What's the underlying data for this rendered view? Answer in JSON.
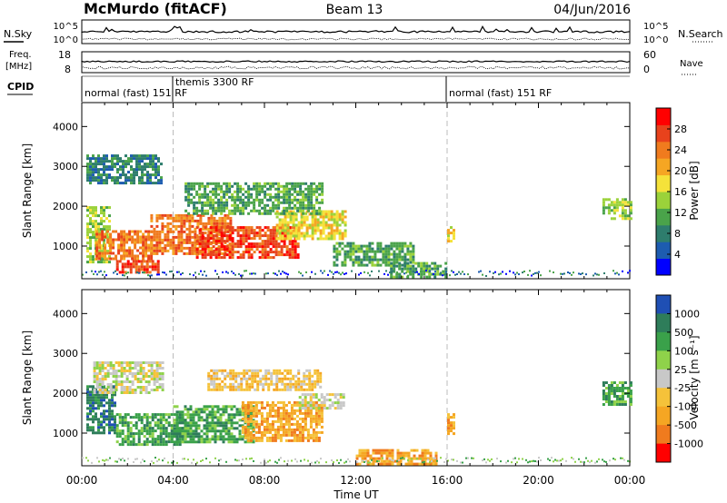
{
  "header": {
    "station": "McMurdo (fitACF)",
    "beam": "Beam 13",
    "date": "04/Jun/2016"
  },
  "noise_panel": {
    "left_label": "N.Sky",
    "right_label": "N.Search",
    "left_ticks": [
      "10^5",
      "10^0"
    ],
    "right_ticks": [
      "10^5",
      "10^0"
    ]
  },
  "freq_panel": {
    "left_label": "Freq.",
    "left_unit": "[MHz]",
    "right_label": "Nave",
    "left_ticks": [
      "18",
      "8"
    ],
    "right_ticks": [
      "60",
      "0"
    ]
  },
  "cpid_panel": {
    "label": "CPID",
    "segments": [
      {
        "name": "normal (fast) 151 RF",
        "start_hour": 0,
        "end_hour": 16
      },
      {
        "name": "themis 3300 RF",
        "start_hour": 3.9,
        "end_hour": 4.1
      },
      {
        "name": "normal (fast) 151 RF",
        "start_hour": 16,
        "end_hour": 24
      }
    ]
  },
  "chart_data": [
    {
      "type": "heatmap",
      "name": "power",
      "ylabel": "Slant Range [km]",
      "ylim": [
        180,
        4600
      ],
      "yticks": [
        "1000",
        "2000",
        "3000",
        "4000"
      ],
      "xlim": [
        0,
        24
      ],
      "colorbar": {
        "label": "Power [dB]",
        "ticks": [
          "4",
          "8",
          "12",
          "16",
          "20",
          "24",
          "28"
        ],
        "range": [
          0,
          32
        ],
        "colors": [
          "#0000ff",
          "#1d5cb0",
          "#2e7d6d",
          "#4aa34a",
          "#9bd23a",
          "#f5e23a",
          "#f5a623",
          "#f07b1e",
          "#e8421c",
          "#ff0000"
        ]
      },
      "regions": [
        {
          "x": [
            0.2,
            1.2
          ],
          "y": [
            600,
            2000
          ],
          "level": 14
        },
        {
          "x": [
            0.6,
            3.0
          ],
          "y": [
            700,
            1400
          ],
          "level": 24
        },
        {
          "x": [
            1.5,
            3.4
          ],
          "y": [
            350,
            650
          ],
          "level": 28
        },
        {
          "x": [
            3.0,
            6.5
          ],
          "y": [
            800,
            1800
          ],
          "level": 26
        },
        {
          "x": [
            5.0,
            9.5
          ],
          "y": [
            700,
            1500
          ],
          "level": 30
        },
        {
          "x": [
            8.5,
            11.5
          ],
          "y": [
            1200,
            1900
          ],
          "level": 18
        },
        {
          "x": [
            4.5,
            10.5
          ],
          "y": [
            1800,
            2600
          ],
          "level": 12
        },
        {
          "x": [
            0.2,
            3.5
          ],
          "y": [
            2600,
            3300
          ],
          "level": 8
        },
        {
          "x": [
            11.0,
            14.5
          ],
          "y": [
            500,
            1100
          ],
          "level": 11
        },
        {
          "x": [
            13.5,
            16.0
          ],
          "y": [
            200,
            600
          ],
          "level": 10
        },
        {
          "x": [
            16.0,
            16.3
          ],
          "y": [
            1100,
            1500
          ],
          "level": 16
        },
        {
          "x": [
            22.8,
            24.0
          ],
          "y": [
            1700,
            2200
          ],
          "level": 14
        }
      ]
    },
    {
      "type": "heatmap",
      "name": "velocity",
      "ylabel": "Slant Range [km]",
      "ylim": [
        180,
        4600
      ],
      "yticks": [
        "1000",
        "2000",
        "3000",
        "4000"
      ],
      "xlim": [
        0,
        24
      ],
      "xticks": [
        "00:00",
        "04:00",
        "08:00",
        "12:00",
        "16:00",
        "20:00",
        "00:00"
      ],
      "xlabel": "Time UT",
      "colorbar": {
        "label": "Velocity [m s⁻¹]",
        "ticks": [
          "1000",
          "500",
          "100",
          "25",
          "-25",
          "-100",
          "-500",
          "-1000"
        ],
        "colors": [
          "#1f4fb4",
          "#2e7d5a",
          "#3aa14a",
          "#8fd24a",
          "#c8c8c8",
          "#f5c23a",
          "#f5a623",
          "#f07b1e",
          "#ff0000"
        ]
      },
      "regions": [
        {
          "x": [
            0.2,
            1.5
          ],
          "y": [
            1000,
            2200
          ],
          "level": 500
        },
        {
          "x": [
            1.5,
            4.5
          ],
          "y": [
            700,
            1500
          ],
          "level": 300
        },
        {
          "x": [
            4.0,
            7.5
          ],
          "y": [
            800,
            1700
          ],
          "level": 200
        },
        {
          "x": [
            7.0,
            10.5
          ],
          "y": [
            800,
            1800
          ],
          "level": -200
        },
        {
          "x": [
            0.5,
            3.5
          ],
          "y": [
            2000,
            2800
          ],
          "level": 0
        },
        {
          "x": [
            5.5,
            10.5
          ],
          "y": [
            2100,
            2600
          ],
          "level": -50
        },
        {
          "x": [
            9.5,
            11.5
          ],
          "y": [
            1600,
            2000
          ],
          "level": 0
        },
        {
          "x": [
            12.0,
            15.5
          ],
          "y": [
            250,
            600
          ],
          "level": -300
        },
        {
          "x": [
            16.0,
            16.3
          ],
          "y": [
            1000,
            1500
          ],
          "level": -400
        },
        {
          "x": [
            22.8,
            24.0
          ],
          "y": [
            1700,
            2300
          ],
          "level": 200
        }
      ]
    }
  ]
}
